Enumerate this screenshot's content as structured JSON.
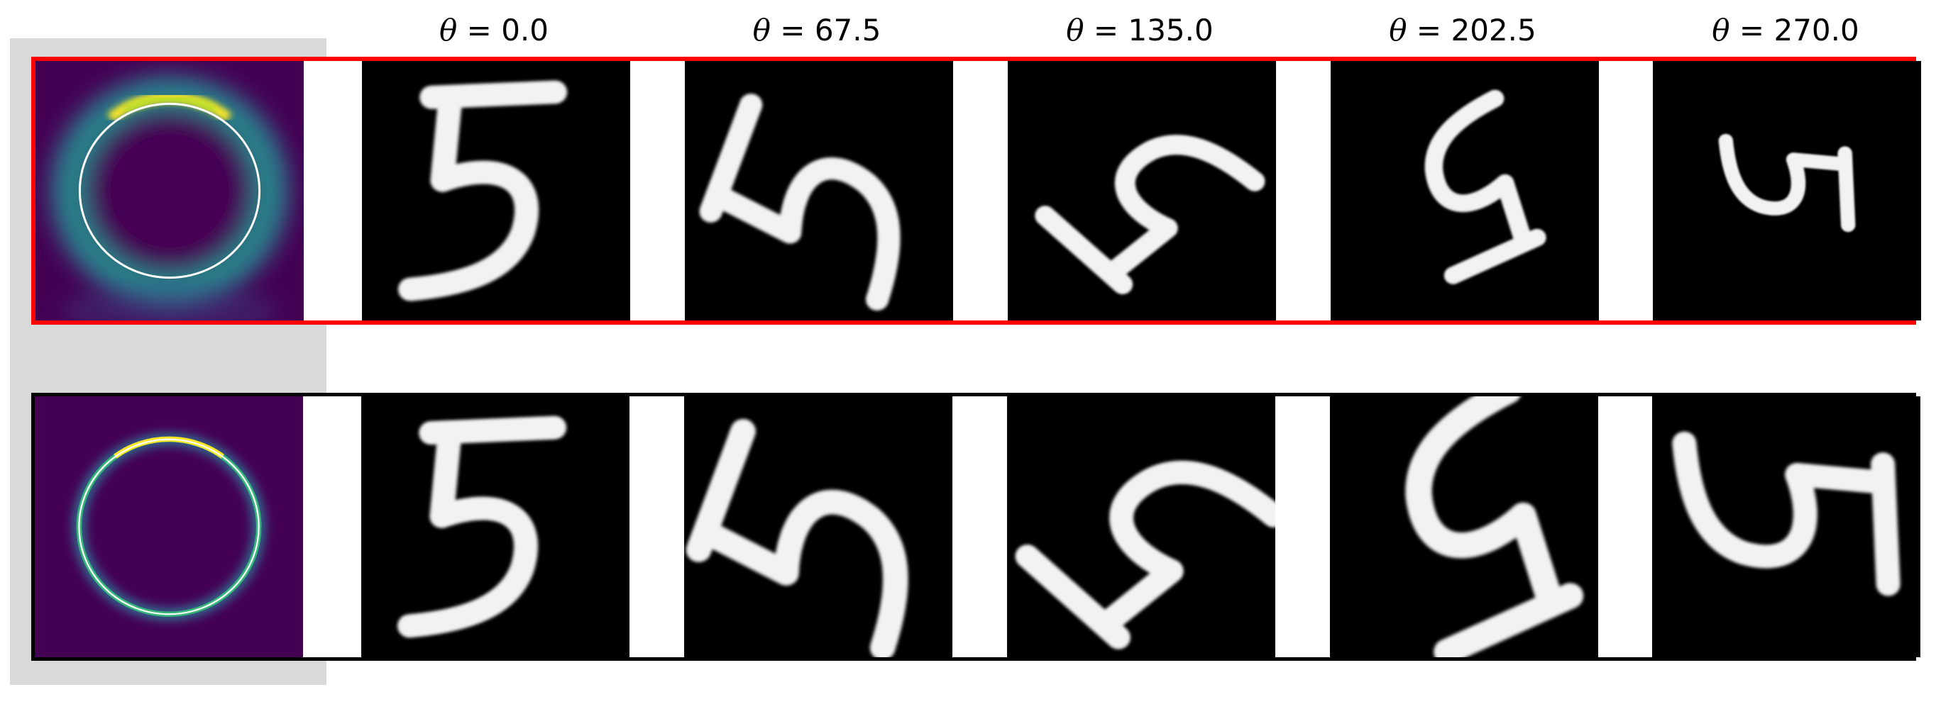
{
  "colors": {
    "highlight_frame": "#ff0000",
    "plain_frame": "#000000",
    "panel": "#d9d9d9",
    "heatmap_bg": "#440154"
  },
  "symbol": "θ",
  "angles": [
    "0.0",
    "67.5",
    "135.0",
    "202.5",
    "270.0"
  ],
  "rows": [
    {
      "id": "top",
      "frame": "red",
      "heatmap": "diffuse-ring-icon",
      "digit": "5"
    },
    {
      "id": "bottom",
      "frame": "black",
      "heatmap": "sharp-ring-icon",
      "digit": "5"
    }
  ]
}
